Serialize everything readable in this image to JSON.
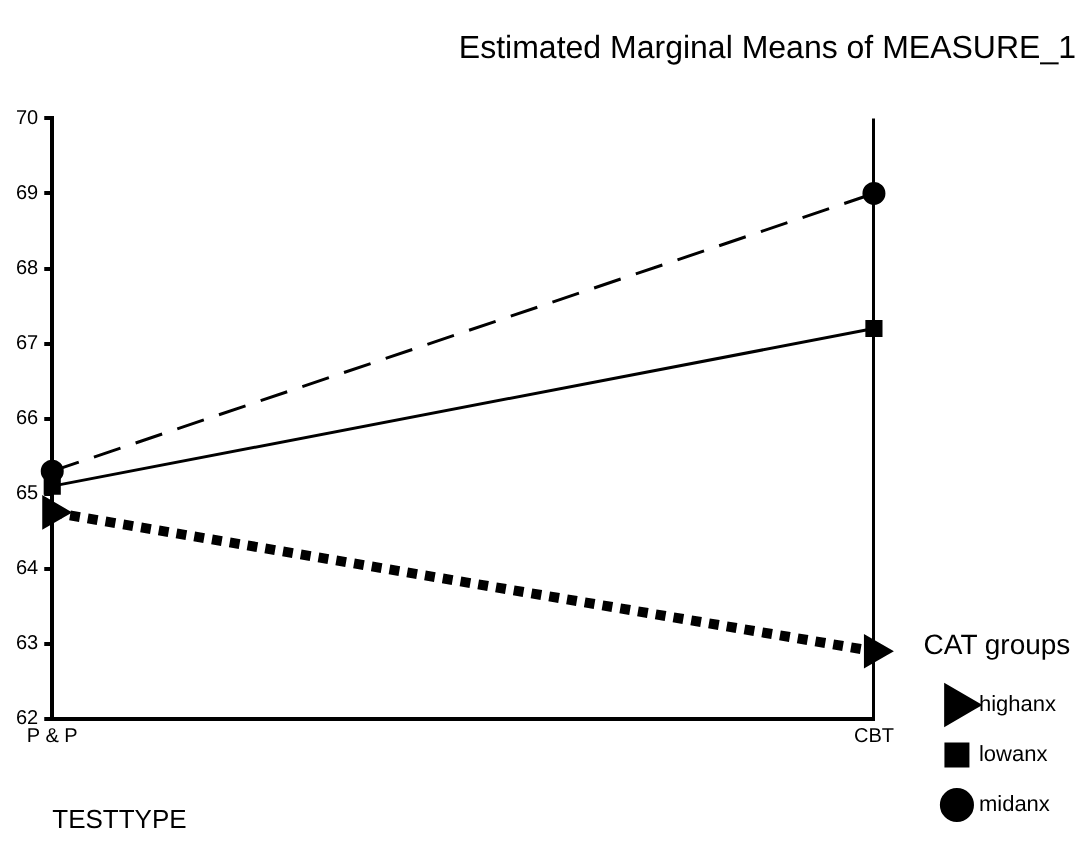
{
  "chart_data": {
    "type": "line",
    "title": "Estimated Marginal Means of MEASURE_1",
    "xlabel": "TESTTYPE",
    "legend_title": "CAT groups",
    "categories": [
      "P & P",
      "CBT"
    ],
    "series": [
      {
        "name": "highanx",
        "color": "#000000",
        "values": [
          64.75,
          62.9
        ],
        "line_style": "dotted",
        "marker": "triangle"
      },
      {
        "name": "lowanx",
        "color": "#000000",
        "values": [
          65.1,
          67.2
        ],
        "line_style": "solid",
        "marker": "square"
      },
      {
        "name": "midanx",
        "color": "#000000",
        "values": [
          65.3,
          69.0
        ],
        "line_style": "dashed",
        "marker": "circle"
      }
    ],
    "ylim": [
      62,
      70
    ],
    "yticks": [
      62,
      63,
      64,
      65,
      66,
      67,
      68,
      69,
      70
    ],
    "grid": "x",
    "legend": "bottom right"
  }
}
